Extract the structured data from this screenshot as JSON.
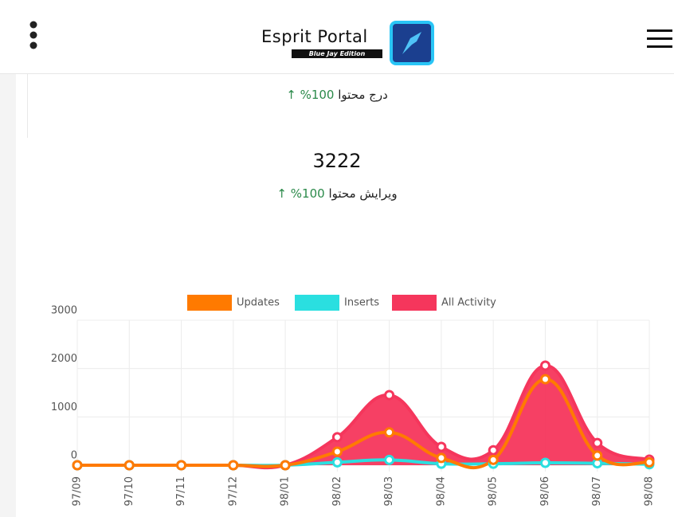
{
  "header": {
    "title": "Esprit Portal",
    "subtitle": "Blue Jay Edition"
  },
  "stats": [
    {
      "label": "درج محتوا",
      "change": "100%"
    },
    {
      "value": 3222,
      "label": "ویرایش محتوا",
      "change": "100%"
    }
  ],
  "chart_data": {
    "type": "line",
    "categories": [
      "97/09",
      "97/10",
      "97/11",
      "97/12",
      "98/01",
      "98/02",
      "98/03",
      "98/04",
      "98/05",
      "98/06",
      "98/07",
      "98/08"
    ],
    "series": [
      {
        "name": "Updates",
        "color": "#ff7a00",
        "values": [
          0,
          0,
          0,
          0,
          0,
          280,
          680,
          150,
          110,
          1780,
          200,
          60
        ]
      },
      {
        "name": "Inserts",
        "color": "#2adfe0",
        "values": [
          0,
          0,
          0,
          0,
          0,
          60,
          110,
          30,
          30,
          50,
          40,
          20
        ]
      },
      {
        "name": "All Activity",
        "color": "#f5365c",
        "fill": true,
        "values": [
          0,
          0,
          0,
          0,
          0,
          580,
          1450,
          380,
          310,
          2060,
          460,
          115
        ]
      }
    ],
    "ylim": [
      0,
      3000
    ],
    "yticks": [
      0,
      1000,
      2000,
      3000
    ],
    "grid": true,
    "legend": "top"
  }
}
